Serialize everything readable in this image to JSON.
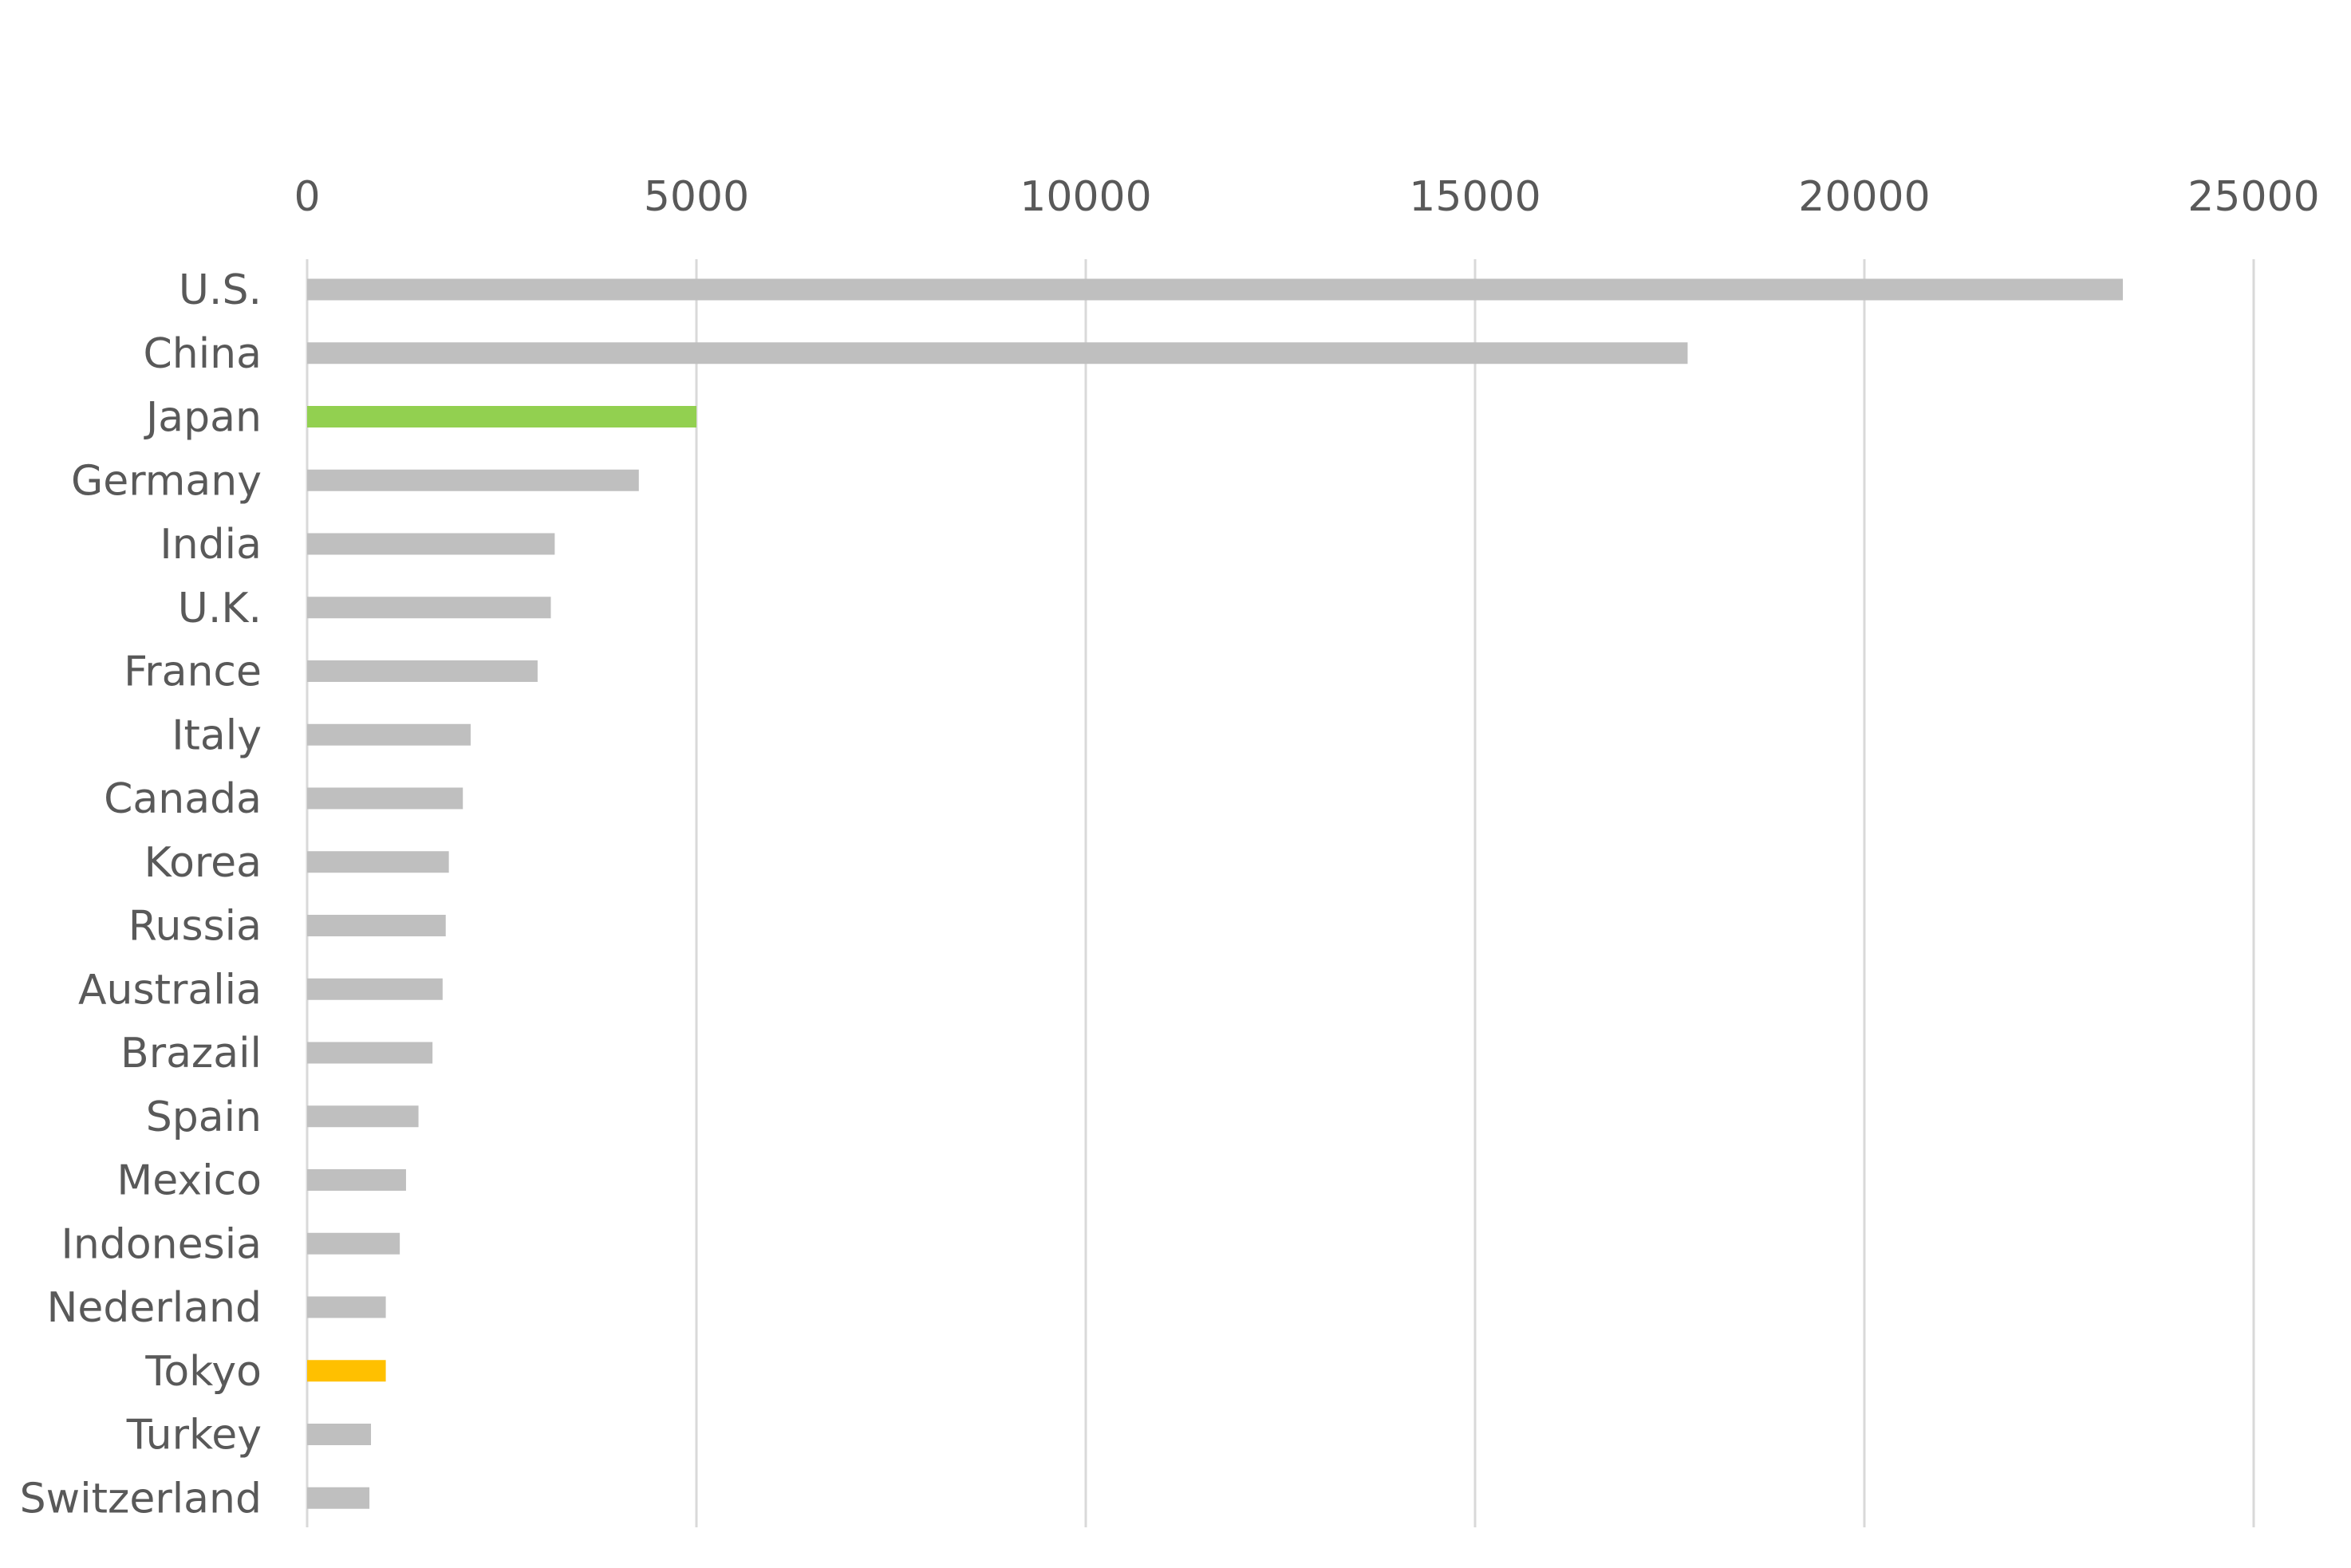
{
  "chart_data": {
    "type": "bar",
    "orientation": "horizontal",
    "title": "",
    "xlabel": "",
    "ylabel": "",
    "xlim": [
      0,
      25000
    ],
    "x_ticks": [
      "0",
      "5000",
      "10000",
      "15000",
      "20000",
      "25000"
    ],
    "x_axis_position": "top",
    "grid": true,
    "legend": "none",
    "categories": [
      "U.S.",
      "China",
      "Japan",
      "Germany",
      "India",
      "U.K.",
      "France",
      "Italy",
      "Canada",
      "Korea",
      "Russia",
      "Australia",
      "Brazail",
      "Spain",
      "Mexico",
      "Indonesia",
      "Nederland",
      "Tokyo",
      "Turkey",
      "Switzerland"
    ],
    "values": [
      23320,
      17730,
      5000,
      4260,
      3180,
      3130,
      2960,
      2100,
      2000,
      1820,
      1780,
      1740,
      1610,
      1430,
      1270,
      1190,
      1010,
      1010,
      820,
      800
    ],
    "colors": [
      "#bfbfbf",
      "#bfbfbf",
      "#92d050",
      "#bfbfbf",
      "#bfbfbf",
      "#bfbfbf",
      "#bfbfbf",
      "#bfbfbf",
      "#bfbfbf",
      "#bfbfbf",
      "#bfbfbf",
      "#bfbfbf",
      "#bfbfbf",
      "#bfbfbf",
      "#bfbfbf",
      "#bfbfbf",
      "#bfbfbf",
      "#ffc000",
      "#bfbfbf",
      "#bfbfbf"
    ]
  }
}
